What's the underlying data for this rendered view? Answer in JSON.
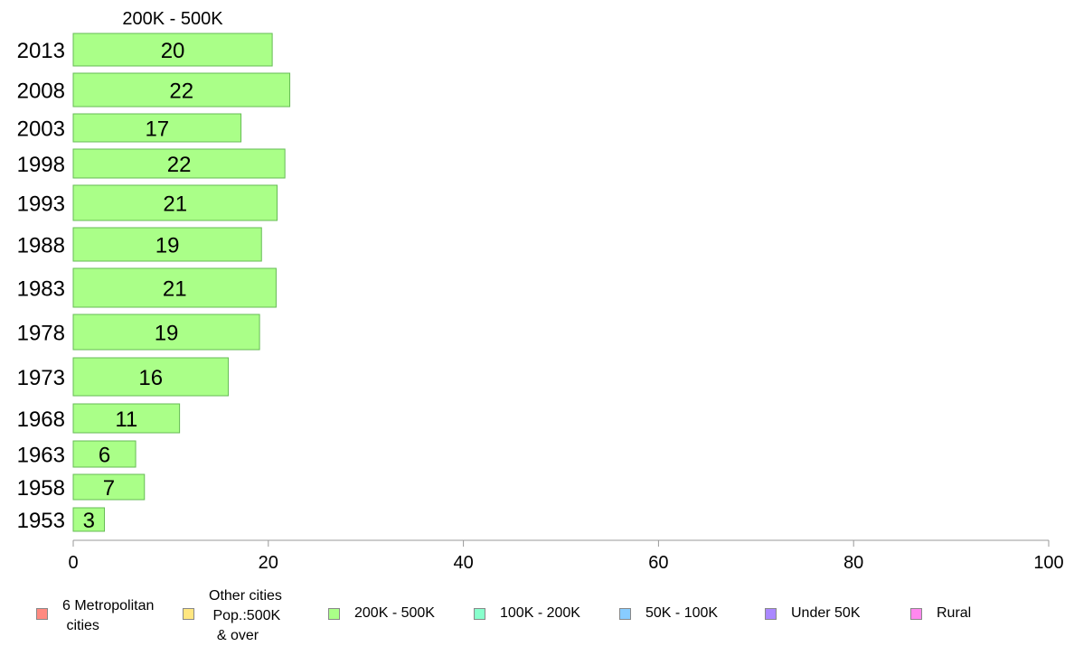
{
  "chart_data": {
    "type": "bar",
    "orientation": "horizontal",
    "title": "200K - 500K",
    "categories": [
      "2013",
      "2008",
      "2003",
      "1998",
      "1993",
      "1988",
      "1983",
      "1978",
      "1973",
      "1968",
      "1963",
      "1958",
      "1953"
    ],
    "values": [
      20,
      22,
      17,
      22,
      21,
      19,
      21,
      19,
      16,
      11,
      6,
      7,
      3
    ],
    "value_labels": [
      "20",
      "22",
      "17",
      "22",
      "21",
      "19",
      "21",
      "19",
      "16",
      "11",
      "6",
      "7",
      "3"
    ],
    "precise_values": [
      20.4,
      22.2,
      17.2,
      21.7,
      20.9,
      19.3,
      20.8,
      19.1,
      15.9,
      10.9,
      6.4,
      7.3,
      3.2
    ],
    "xlim": [
      0,
      100
    ],
    "xticks": [
      "0",
      "20",
      "40",
      "60",
      "80",
      "100"
    ],
    "xtick_values": [
      0,
      20,
      40,
      60,
      80,
      100
    ],
    "bar_color": "#aaff88",
    "bar_stroke": "#66bb55",
    "grid": false,
    "legend_position": "bottom"
  },
  "legend": {
    "items": [
      {
        "label": "6 Metropolitan\n cities",
        "color": "#ff8a80"
      },
      {
        "label": "Other cities\n Pop.:500K\n  & over",
        "color": "#ffe680"
      },
      {
        "label": "200K - 500K",
        "color": "#aaff88"
      },
      {
        "label": "100K - 200K",
        "color": "#88ffcc"
      },
      {
        "label": "50K - 100K",
        "color": "#88ccff"
      },
      {
        "label": "Under 50K",
        "color": "#aa88ff"
      },
      {
        "label": "Rural",
        "color": "#ff88ee"
      }
    ]
  }
}
